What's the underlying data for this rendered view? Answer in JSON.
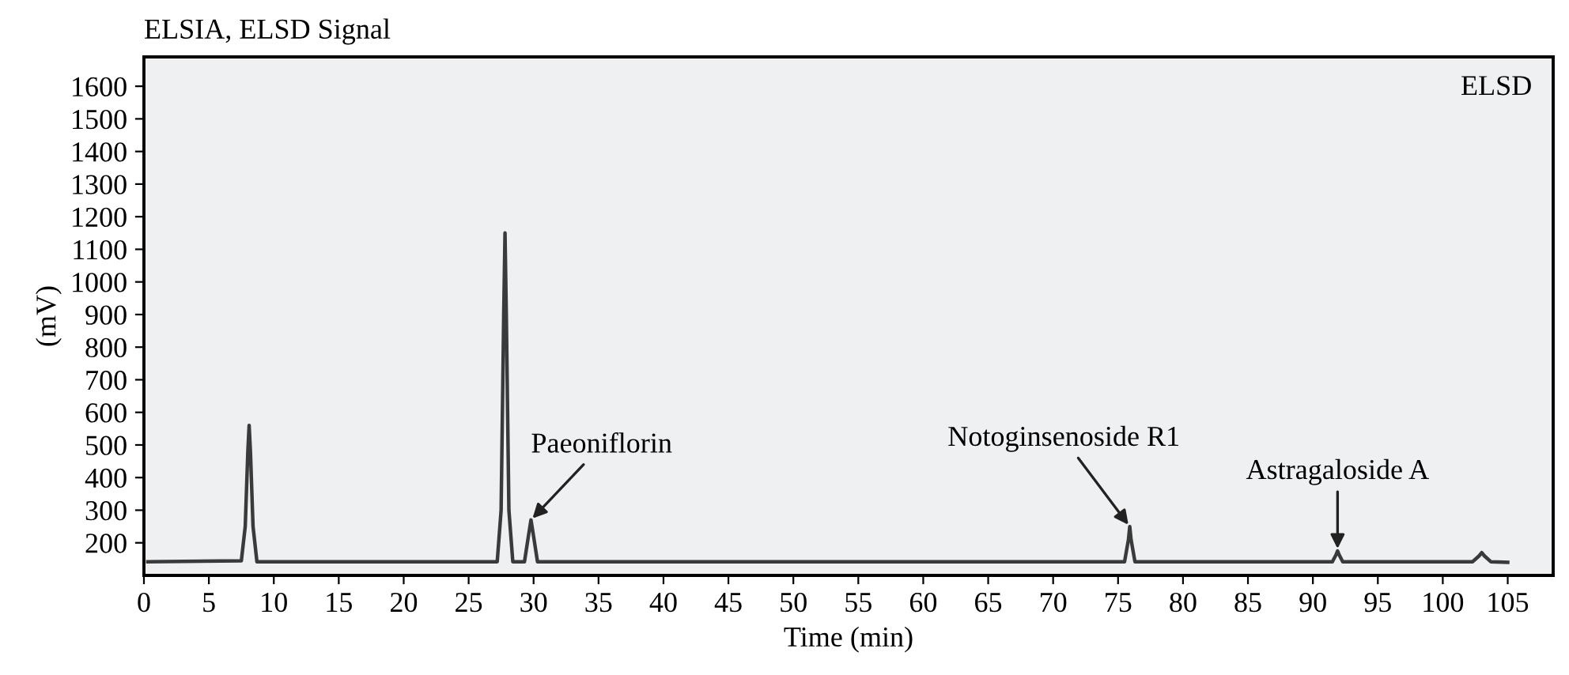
{
  "chart_data": {
    "type": "line",
    "title": "ELSIA, ELSD Signal",
    "xlabel": "Time (min)",
    "ylabel": "(mV)",
    "x": [
      0.3,
      7.5,
      7.8,
      8.0,
      8.1,
      8.2,
      8.4,
      8.7,
      27.2,
      27.5,
      27.7,
      27.8,
      27.9,
      28.1,
      28.4,
      29.3,
      29.6,
      29.8,
      30.0,
      30.3,
      75.5,
      75.8,
      75.9,
      76.0,
      76.3,
      91.5,
      91.8,
      91.9,
      92.0,
      92.3,
      102.3,
      102.8,
      103.0,
      103.2,
      103.7,
      105.0
    ],
    "series": [
      {
        "color": "#3a3a3a",
        "values": [
          142,
          145,
          250,
          480,
          560,
          480,
          250,
          142,
          142,
          300,
          900,
          1150,
          900,
          300,
          142,
          142,
          220,
          270,
          220,
          142,
          142,
          210,
          250,
          210,
          142,
          142,
          165,
          175,
          165,
          142,
          142,
          160,
          170,
          160,
          142,
          140
        ]
      }
    ],
    "xlim": [
      0,
      108.5
    ],
    "ylim": [
      100,
      1690
    ],
    "xticks": [
      0,
      5,
      10,
      15,
      20,
      25,
      30,
      35,
      40,
      45,
      50,
      55,
      60,
      65,
      70,
      75,
      80,
      85,
      90,
      95,
      100,
      105
    ],
    "yticks": [
      200,
      300,
      400,
      500,
      600,
      700,
      800,
      900,
      1000,
      1100,
      1200,
      1300,
      1400,
      1500,
      1600
    ],
    "annotations": [
      "ELSD",
      {
        "text": "Paeoniflorin",
        "x": 29.8,
        "y": 270
      },
      {
        "text": "Notoginsenoside R1",
        "x": 75.9,
        "y": 250
      },
      {
        "text": "Astragaloside A",
        "x": 91.9,
        "y": 175
      }
    ],
    "grid": false,
    "legend": false,
    "marker": "none",
    "line_style": "solid"
  }
}
